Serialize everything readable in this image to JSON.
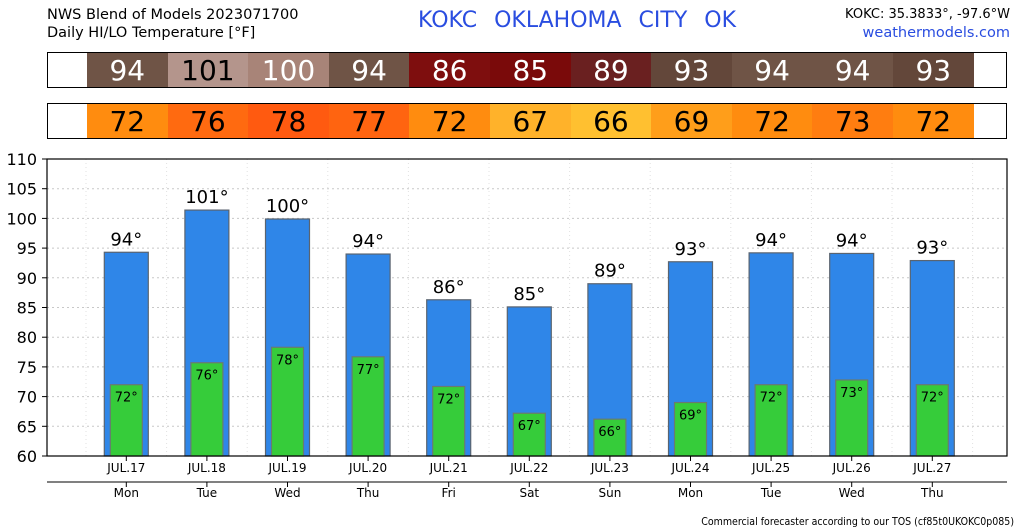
{
  "header": {
    "line1": "NWS Blend of Models 2023071700",
    "line2": "Daily HI/LO Temperature [°F]",
    "station_title": "KOKC   OKLAHOMA CITY   OK",
    "coords": "KOKC: 35.3833°, -97.6°W",
    "site": "weathermodels.com"
  },
  "footer": "Commercial forecaster according to our TOS (cf85t0UKOKC0p085)",
  "hi_strip": {
    "values": [
      "94",
      "101",
      "100",
      "94",
      "86",
      "85",
      "89",
      "93",
      "94",
      "94",
      "93"
    ],
    "colors": [
      "#6f5446",
      "#b4958c",
      "#a88478",
      "#6f5446",
      "#7e0e0e",
      "#7a0a0a",
      "#6a2020",
      "#63473a",
      "#6f5446",
      "#6f5446",
      "#63473a"
    ],
    "text_colors": [
      "#ffffff",
      "#000000",
      "#ffffff",
      "#ffffff",
      "#ffffff",
      "#ffffff",
      "#ffffff",
      "#ffffff",
      "#ffffff",
      "#ffffff",
      "#ffffff"
    ]
  },
  "lo_strip": {
    "values": [
      "72",
      "76",
      "78",
      "77",
      "72",
      "67",
      "66",
      "69",
      "72",
      "73",
      "72"
    ],
    "colors": [
      "#ff8c0f",
      "#ff6a10",
      "#ff5a10",
      "#ff6410",
      "#ff8c0f",
      "#ffb22a",
      "#ffc030",
      "#ff9e1a",
      "#ff8c0f",
      "#ff7d10",
      "#ff8c0f"
    ]
  },
  "chart_data": {
    "type": "bar",
    "categories": [
      "JUL.17",
      "JUL.18",
      "JUL.19",
      "JUL.20",
      "JUL.21",
      "JUL.22",
      "JUL.23",
      "JUL.24",
      "JUL.25",
      "JUL.26",
      "JUL.27"
    ],
    "weekdays": [
      "Mon",
      "Tue",
      "Wed",
      "Thu",
      "Fri",
      "Sat",
      "Sun",
      "Mon",
      "Tue",
      "Wed",
      "Thu"
    ],
    "series": [
      {
        "values": [
          94.3,
          101.4,
          99.9,
          94.0,
          86.3,
          85.1,
          89.0,
          92.7,
          94.2,
          94.1,
          92.9
        ],
        "labels": [
          "94°",
          "101°",
          "100°",
          "94°",
          "86°",
          "85°",
          "89°",
          "93°",
          "94°",
          "94°",
          "93°"
        ],
        "color": "#2f86e8"
      },
      {
        "values": [
          72,
          75.7,
          78.3,
          76.7,
          71.7,
          67.2,
          66.2,
          69.0,
          72.0,
          72.8,
          72.0
        ],
        "labels": [
          "72°",
          "76°",
          "78°",
          "77°",
          "72°",
          "67°",
          "66°",
          "69°",
          "72°",
          "73°",
          "72°"
        ],
        "color": "#36cc3a"
      }
    ],
    "ylim": [
      60,
      110
    ],
    "yticks": [
      "60",
      "65",
      "70",
      "75",
      "80",
      "85",
      "90",
      "95",
      "100",
      "105",
      "110"
    ],
    "grid": true
  }
}
